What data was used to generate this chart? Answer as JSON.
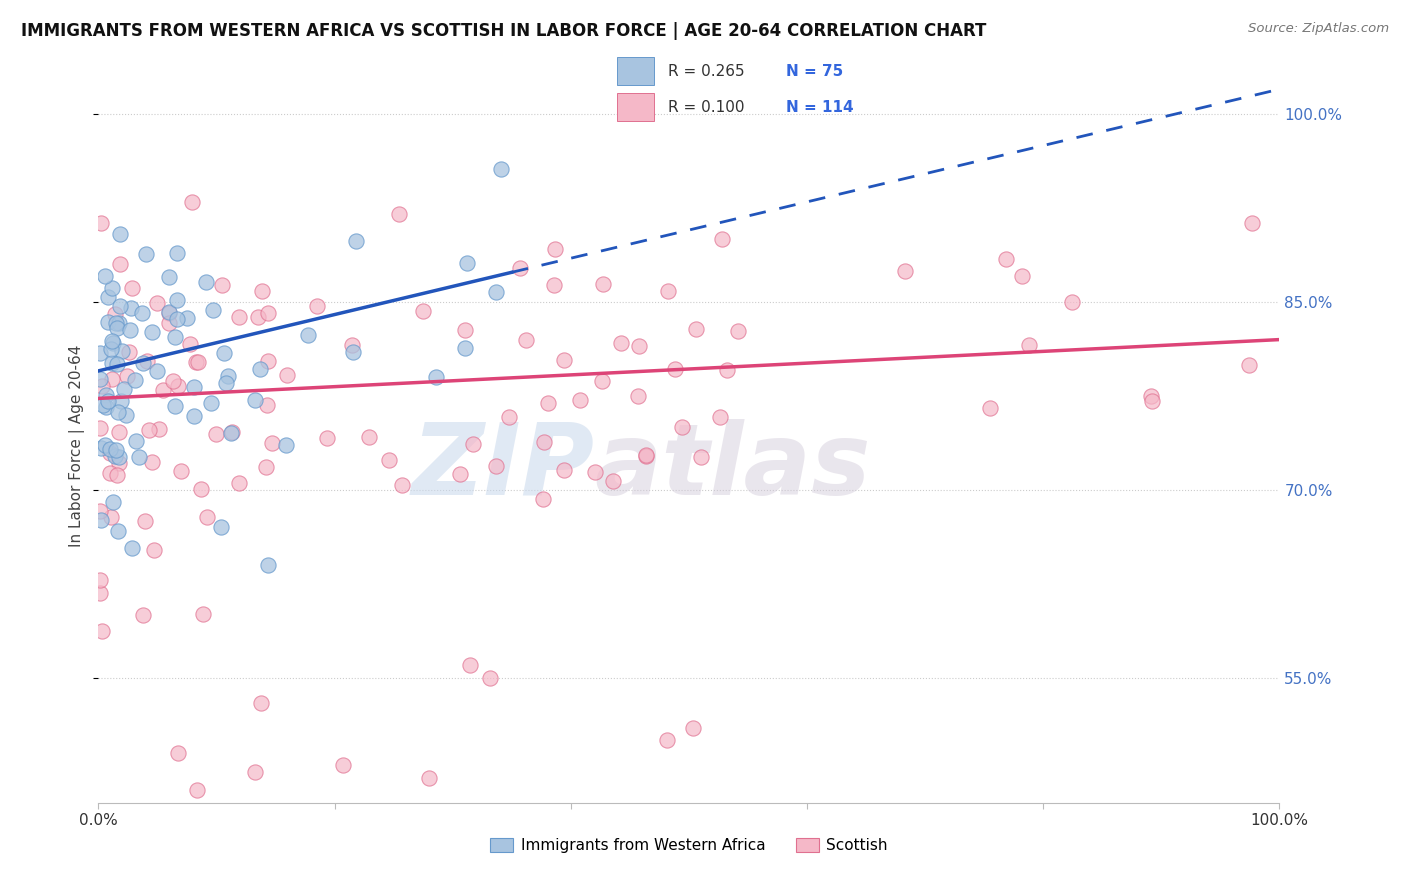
{
  "title": "IMMIGRANTS FROM WESTERN AFRICA VS SCOTTISH IN LABOR FORCE | AGE 20-64 CORRELATION CHART",
  "source": "Source: ZipAtlas.com",
  "ylabel": "In Labor Force | Age 20-64",
  "blue_R": 0.265,
  "blue_N": 75,
  "pink_R": 0.1,
  "pink_N": 114,
  "blue_color": "#a8c4e0",
  "blue_edge_color": "#6699cc",
  "pink_color": "#f5b8c8",
  "pink_edge_color": "#e07090",
  "blue_line_color": "#2255bb",
  "pink_line_color": "#dd4477",
  "legend_label_blue": "Immigrants from Western Africa",
  "legend_label_pink": "Scottish",
  "watermark": "ZIPatlas",
  "y_min": 0.45,
  "y_max": 1.02,
  "x_min": 0.0,
  "x_max": 1.0,
  "blue_line_x0": 0.0,
  "blue_line_y0": 0.795,
  "blue_line_x1": 1.0,
  "blue_line_y1": 1.02,
  "blue_line_solid_end": 0.35,
  "pink_line_x0": 0.0,
  "pink_line_y0": 0.773,
  "pink_line_x1": 1.0,
  "pink_line_y1": 0.82
}
